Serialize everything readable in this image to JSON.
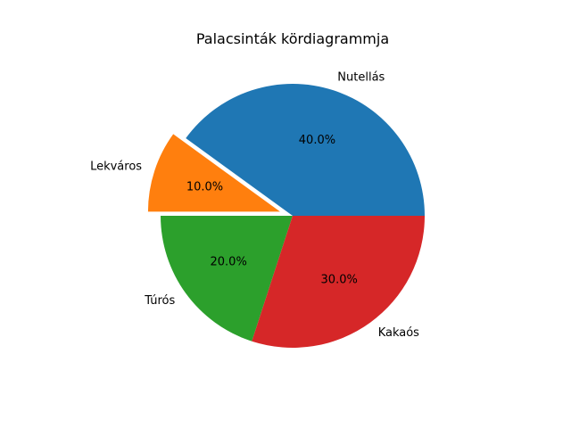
{
  "chart_data": {
    "type": "pie",
    "title": "Palacsinták kördiagrammja",
    "slices": [
      {
        "label": "Nutellás",
        "value": 40.0,
        "pct_text": "40.0%",
        "color": "#1f77b4",
        "explode": 0
      },
      {
        "label": "Lekváros",
        "value": 10.0,
        "pct_text": "10.0%",
        "color": "#ff7f0e",
        "explode": 0.1
      },
      {
        "label": "Túrós",
        "value": 20.0,
        "pct_text": "20.0%",
        "color": "#2ca02c",
        "explode": 0
      },
      {
        "label": "Kakaós",
        "value": 30.0,
        "pct_text": "30.0%",
        "color": "#d62728",
        "explode": 0
      }
    ],
    "start_angle": 0,
    "direction": "counterclockwise"
  }
}
